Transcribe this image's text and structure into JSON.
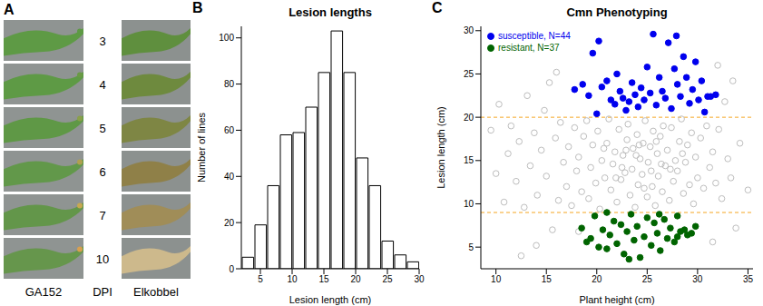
{
  "photo_panel": {
    "panel": "A",
    "left_label": "GA152",
    "middle_label": "DPI",
    "right_label": "Elkobbel",
    "dpi": [
      3,
      4,
      5,
      6,
      7,
      10
    ]
  },
  "chart_data": [
    {
      "panel": "B",
      "type": "histogram",
      "title": "Lesion lengths",
      "x_label": "Lesion length (cm)",
      "y_label": "Number of lines",
      "bins": [
        2,
        4,
        6,
        8,
        10,
        12,
        14,
        16,
        18,
        20,
        22,
        24,
        26,
        28,
        30
      ],
      "counts": [
        5,
        19,
        36,
        58,
        59,
        70,
        85,
        103,
        85,
        48,
        36,
        12,
        6,
        3
      ],
      "xlim": [
        2,
        30
      ],
      "xticks": [
        5,
        10,
        15,
        20,
        25,
        30
      ],
      "ylim": [
        0,
        105
      ],
      "yticks": [
        0,
        20,
        40,
        60,
        80,
        100
      ]
    },
    {
      "panel": "C",
      "type": "scatter",
      "title": "Cmn Phenotyping",
      "x_label": "Plant height (cm)",
      "y_label": "Lesion length (cm)",
      "xlim": [
        8.5,
        35.5
      ],
      "xticks": [
        10,
        15,
        20,
        25,
        30,
        35
      ],
      "ylim": [
        2.5,
        30.5
      ],
      "yticks": [
        5,
        10,
        15,
        20,
        25,
        30
      ],
      "legend": "top-left",
      "hlines": [
        9,
        20
      ],
      "series": [
        {
          "color": "#bdbdbd",
          "marker": "open_circle",
          "values": [
            [
              9.5,
              18.5
            ],
            [
              10,
              13.5
            ],
            [
              10.3,
              21.5
            ],
            [
              10.8,
              10.2
            ],
            [
              11.2,
              15.8
            ],
            [
              11.5,
              19.0
            ],
            [
              12.0,
              12.6
            ],
            [
              12.3,
              17.2
            ],
            [
              12.8,
              9.6
            ],
            [
              13.1,
              22.5
            ],
            [
              13.4,
              14.4
            ],
            [
              13.8,
              18.2
            ],
            [
              14.1,
              11.0
            ],
            [
              14.5,
              16.2
            ],
            [
              14.8,
              20.8
            ],
            [
              15.0,
              13.2
            ],
            [
              15.3,
              24.0
            ],
            [
              15.6,
              7.0
            ],
            [
              15.9,
              17.6
            ],
            [
              16.2,
              10.4
            ],
            [
              16.4,
              19.4
            ],
            [
              16.7,
              14.8
            ],
            [
              17.0,
              12.0
            ],
            [
              17.2,
              16.6
            ],
            [
              17.5,
              9.8
            ],
            [
              17.8,
              18.8
            ],
            [
              18.0,
              13.8
            ],
            [
              18.2,
              15.4
            ],
            [
              18.5,
              11.4
            ],
            [
              18.7,
              17.8
            ],
            [
              19.0,
              19.6
            ],
            [
              19.2,
              10.6
            ],
            [
              19.4,
              14.2
            ],
            [
              19.6,
              16.8
            ],
            [
              19.9,
              12.4
            ],
            [
              20.1,
              18.4
            ],
            [
              20.3,
              9.4
            ],
            [
              20.5,
              15.0
            ],
            [
              20.8,
              13.0
            ],
            [
              21.0,
              17.0
            ],
            [
              21.2,
              19.8
            ],
            [
              21.4,
              11.6
            ],
            [
              21.6,
              14.6
            ],
            [
              21.8,
              16.0
            ],
            [
              22.0,
              10.2
            ],
            [
              22.2,
              18.6
            ],
            [
              22.4,
              12.8
            ],
            [
              22.6,
              15.6
            ],
            [
              22.8,
              13.6
            ],
            [
              23.0,
              17.4
            ],
            [
              23.1,
              19.2
            ],
            [
              23.3,
              11.0
            ],
            [
              23.5,
              14.0
            ],
            [
              23.6,
              16.4
            ],
            [
              23.8,
              9.6
            ],
            [
              24.0,
              18.0
            ],
            [
              24.1,
              12.2
            ],
            [
              24.3,
              15.2
            ],
            [
              24.5,
              13.4
            ],
            [
              24.6,
              17.0
            ],
            [
              24.8,
              19.6
            ],
            [
              25.0,
              10.8
            ],
            [
              25.1,
              14.8
            ],
            [
              25.3,
              16.6
            ],
            [
              25.5,
              12.0
            ],
            [
              25.6,
              18.4
            ],
            [
              25.8,
              9.8
            ],
            [
              26.0,
              15.8
            ],
            [
              26.1,
              13.2
            ],
            [
              26.3,
              17.8
            ],
            [
              26.5,
              11.4
            ],
            [
              26.6,
              19.0
            ],
            [
              26.8,
              14.4
            ],
            [
              27.0,
              16.2
            ],
            [
              27.2,
              10.4
            ],
            [
              27.4,
              18.8
            ],
            [
              27.6,
              12.6
            ],
            [
              27.8,
              15.0
            ],
            [
              28.0,
              13.8
            ],
            [
              28.2,
              17.2
            ],
            [
              28.4,
              19.8
            ],
            [
              28.6,
              11.2
            ],
            [
              28.8,
              14.8
            ],
            [
              29.0,
              16.8
            ],
            [
              29.2,
              12.2
            ],
            [
              29.4,
              18.2
            ],
            [
              29.6,
              10.0
            ],
            [
              29.8,
              15.4
            ],
            [
              30.0,
              13.0
            ],
            [
              30.3,
              17.6
            ],
            [
              30.6,
              11.8
            ],
            [
              30.9,
              19.0
            ],
            [
              31.2,
              14.2
            ],
            [
              31.5,
              16.0
            ],
            [
              31.8,
              12.4
            ],
            [
              32.1,
              18.6
            ],
            [
              32.4,
              10.6
            ],
            [
              32.7,
              21.8
            ],
            [
              33.0,
              15.2
            ],
            [
              33.3,
              13.0
            ],
            [
              33.8,
              7.2
            ],
            [
              34.2,
              17.0
            ],
            [
              35.0,
              11.6
            ],
            [
              16.0,
              25.2
            ],
            [
              14.0,
              5.2
            ],
            [
              12.5,
              4.0
            ],
            [
              32.0,
              26.0
            ],
            [
              33.5,
              24.2
            ],
            [
              18.2,
              6.8
            ],
            [
              31.5,
              5.6
            ],
            [
              22.5,
              14.2
            ],
            [
              24.2,
              16.8
            ],
            [
              25.4,
              13.8
            ],
            [
              23.9,
              15.6
            ],
            [
              26.4,
              14.6
            ],
            [
              21.9,
              13.0
            ],
            [
              24.7,
              11.8
            ],
            [
              25.9,
              17.2
            ],
            [
              27.3,
              14.0
            ],
            [
              22.9,
              16.2
            ],
            [
              20.7,
              16.4
            ],
            [
              28.5,
              15.8
            ]
          ]
        },
        {
          "name": "susceptible, N=44",
          "color": "#0000ee",
          "marker": "circle",
          "values": [
            [
              17.8,
              23.2
            ],
            [
              18.6,
              23.8
            ],
            [
              19.2,
              22.5
            ],
            [
              19.6,
              27.4
            ],
            [
              20.2,
              28.8
            ],
            [
              20.5,
              23.5
            ],
            [
              21.0,
              24.2
            ],
            [
              21.4,
              22.0
            ],
            [
              21.8,
              21.5
            ],
            [
              22.0,
              25.0
            ],
            [
              22.3,
              23.0
            ],
            [
              22.6,
              22.2
            ],
            [
              22.9,
              20.8
            ],
            [
              23.2,
              21.8
            ],
            [
              23.5,
              24.0
            ],
            [
              23.8,
              22.6
            ],
            [
              24.1,
              21.2
            ],
            [
              24.4,
              23.4
            ],
            [
              24.7,
              22.0
            ],
            [
              25.0,
              25.8
            ],
            [
              25.3,
              22.8
            ],
            [
              25.6,
              29.6
            ],
            [
              25.9,
              21.4
            ],
            [
              26.2,
              24.6
            ],
            [
              26.5,
              23.0
            ],
            [
              26.8,
              22.2
            ],
            [
              27.1,
              28.6
            ],
            [
              27.4,
              21.0
            ],
            [
              27.7,
              25.6
            ],
            [
              28.0,
              23.8
            ],
            [
              28.3,
              22.4
            ],
            [
              28.6,
              27.0
            ],
            [
              28.9,
              24.6
            ],
            [
              29.2,
              21.6
            ],
            [
              29.5,
              23.2
            ],
            [
              29.8,
              26.4
            ],
            [
              30.1,
              22.0
            ],
            [
              30.4,
              24.2
            ],
            [
              30.7,
              20.6
            ],
            [
              31.0,
              22.4
            ],
            [
              31.3,
              22.4
            ],
            [
              31.8,
              22.6
            ],
            [
              20.0,
              20.4
            ],
            [
              27.9,
              29.4
            ]
          ]
        },
        {
          "name": "resistant, N=37",
          "color": "#006400",
          "marker": "circle",
          "values": [
            [
              18.5,
              7.2
            ],
            [
              19.0,
              5.6
            ],
            [
              19.4,
              6.0
            ],
            [
              19.8,
              8.6
            ],
            [
              20.2,
              5.0
            ],
            [
              20.6,
              7.0
            ],
            [
              21.0,
              4.8
            ],
            [
              21.3,
              6.4
            ],
            [
              21.7,
              8.0
            ],
            [
              22.0,
              5.4
            ],
            [
              22.4,
              7.6
            ],
            [
              22.7,
              4.2
            ],
            [
              23.0,
              6.8
            ],
            [
              23.4,
              8.8
            ],
            [
              23.7,
              5.8
            ],
            [
              24.0,
              7.4
            ],
            [
              24.3,
              3.8
            ],
            [
              24.7,
              6.2
            ],
            [
              25.0,
              8.4
            ],
            [
              25.4,
              5.2
            ],
            [
              25.7,
              7.8
            ],
            [
              26.0,
              6.6
            ],
            [
              26.3,
              4.6
            ],
            [
              26.7,
              8.2
            ],
            [
              27.0,
              6.0
            ],
            [
              27.3,
              7.2
            ],
            [
              27.7,
              5.6
            ],
            [
              28.0,
              8.6
            ],
            [
              28.3,
              6.8
            ],
            [
              28.7,
              7.0
            ],
            [
              29.0,
              6.4
            ],
            [
              29.4,
              6.6
            ],
            [
              29.8,
              7.4
            ],
            [
              21.0,
              9.0
            ],
            [
              23.2,
              3.6
            ],
            [
              26.2,
              8.8
            ],
            [
              28.0,
              6.2
            ]
          ]
        }
      ]
    }
  ]
}
